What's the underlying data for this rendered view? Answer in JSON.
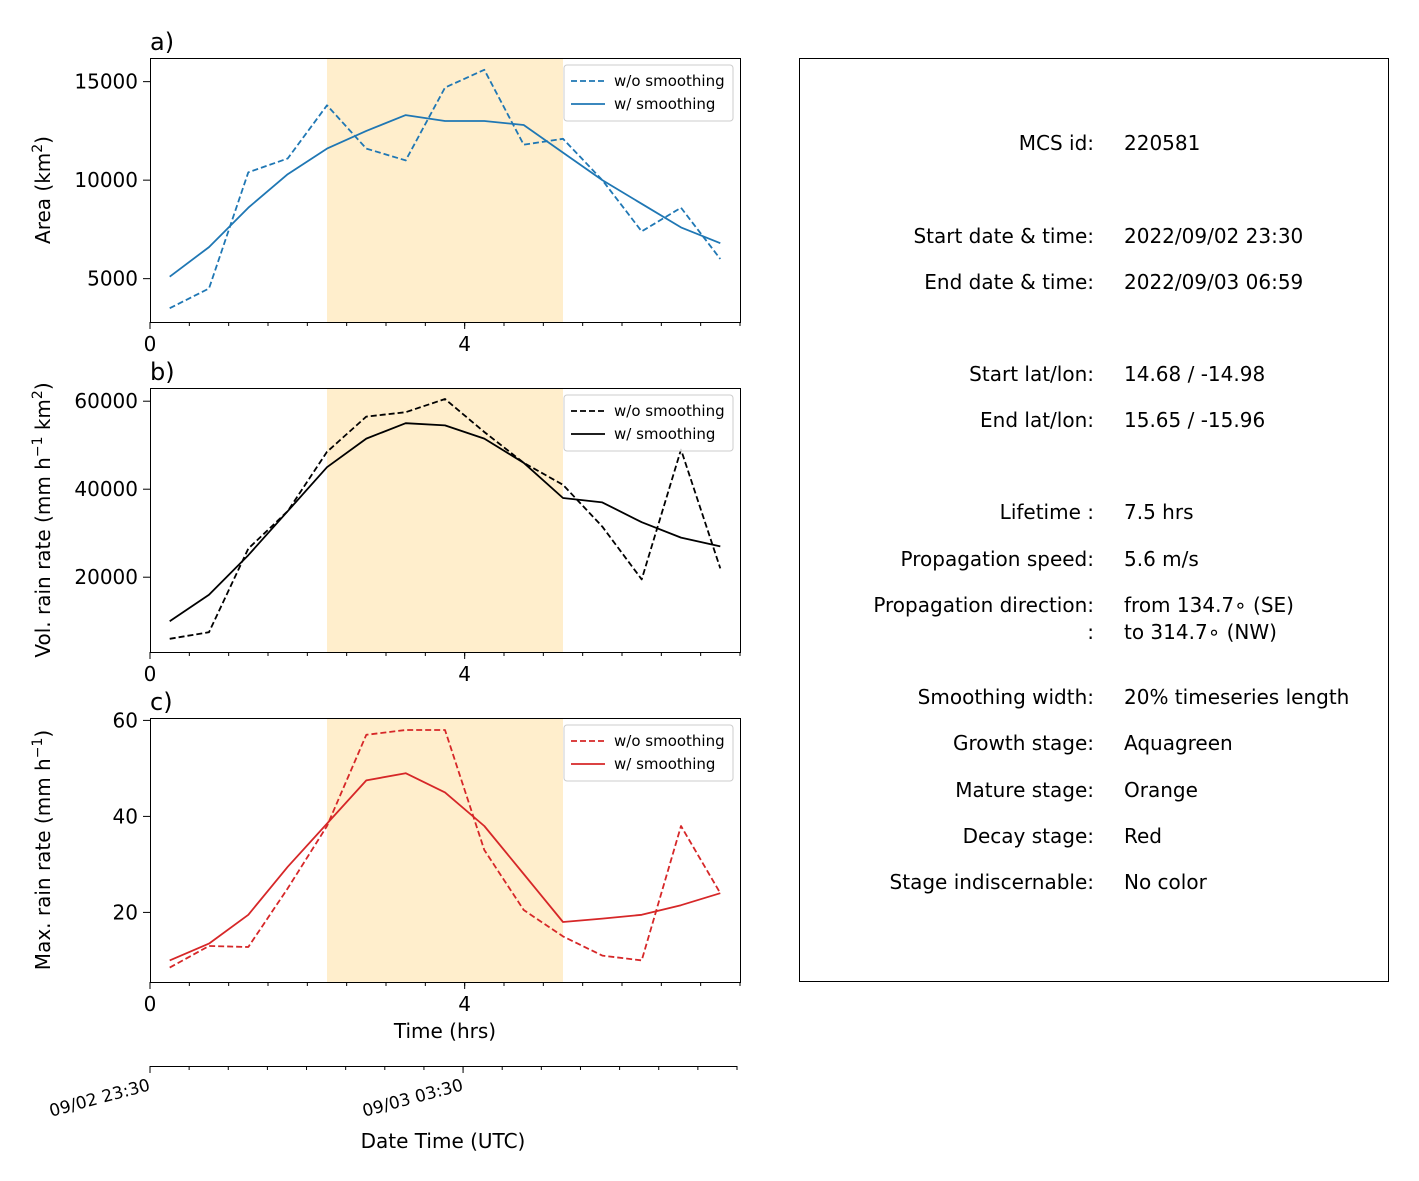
{
  "chart_data": [
    {
      "panel_label": "a)",
      "type": "line",
      "ylabel": "Area  (km",
      "ylabel_sup": "2",
      "ylabel_tail": ")",
      "xlim": [
        0,
        7.5
      ],
      "ylim": [
        2800,
        16200
      ],
      "yticks": [
        5000,
        10000,
        15000
      ],
      "xticks": [
        0,
        4
      ],
      "xticks_minor": [
        0,
        0.5,
        1,
        1.5,
        2,
        2.5,
        3,
        3.5,
        4,
        4.5,
        5,
        5.5,
        6,
        6.5,
        7,
        7.5
      ],
      "shade": {
        "from": 2.25,
        "to": 5.25,
        "color": "#ffeecc"
      },
      "color": "#1f77b4",
      "legend_position": "top-right",
      "series": [
        {
          "name": "w/o smoothing",
          "style": "dashed",
          "x": [
            0.25,
            0.75,
            1.25,
            1.75,
            2.25,
            2.75,
            3.25,
            3.75,
            4.25,
            4.75,
            5.25,
            5.75,
            6.25,
            6.75,
            7.25
          ],
          "y": [
            3500,
            4500,
            10400,
            11100,
            13800,
            11600,
            11000,
            14700,
            15600,
            11800,
            12100,
            10000,
            7400,
            8600,
            6000
          ]
        },
        {
          "name": "w/ smoothing",
          "style": "solid",
          "x": [
            0.25,
            0.75,
            1.25,
            1.75,
            2.25,
            2.75,
            3.25,
            3.75,
            4.25,
            4.75,
            5.25,
            5.75,
            6.25,
            6.75,
            7.25
          ],
          "y": [
            5100,
            6600,
            8600,
            10300,
            11600,
            12500,
            13300,
            13000,
            13000,
            12800,
            11400,
            10000,
            8800,
            7600,
            6800
          ]
        }
      ]
    },
    {
      "panel_label": "b)",
      "type": "line",
      "ylabel": "Vol. rain rate (mm h",
      "ylabel_sup": "−1",
      "ylabel_mid": " km",
      "ylabel_sup2": "2",
      "ylabel_tail": ")",
      "xlim": [
        0,
        7.5
      ],
      "ylim": [
        3000,
        63000
      ],
      "yticks": [
        20000,
        40000,
        60000
      ],
      "xticks": [
        0,
        4
      ],
      "xticks_minor": [
        0,
        0.5,
        1,
        1.5,
        2,
        2.5,
        3,
        3.5,
        4,
        4.5,
        5,
        5.5,
        6,
        6.5,
        7,
        7.5
      ],
      "shade": {
        "from": 2.25,
        "to": 5.25,
        "color": "#ffeecc"
      },
      "color": "#000000",
      "legend_position": "top-right",
      "series": [
        {
          "name": "w/o smoothing",
          "style": "dashed",
          "x": [
            0.25,
            0.75,
            1.25,
            1.75,
            2.25,
            2.75,
            3.25,
            3.75,
            4.25,
            4.75,
            5.25,
            5.75,
            6.25,
            6.75,
            7.25
          ],
          "y": [
            6000,
            7500,
            26500,
            35000,
            48500,
            56500,
            57500,
            60500,
            53000,
            46000,
            41000,
            31500,
            19500,
            49000,
            22000
          ]
        },
        {
          "name": "w/ smoothing",
          "style": "solid",
          "x": [
            0.25,
            0.75,
            1.25,
            1.75,
            2.25,
            2.75,
            3.25,
            3.75,
            4.25,
            4.75,
            5.25,
            5.75,
            6.25,
            6.75,
            7.25
          ],
          "y": [
            10000,
            16000,
            25000,
            35000,
            45000,
            51500,
            55000,
            54500,
            51500,
            46000,
            38000,
            37000,
            32500,
            29000,
            27000
          ]
        }
      ]
    },
    {
      "panel_label": "c)",
      "type": "line",
      "ylabel": "Max. rain rate  (mm h",
      "ylabel_sup": "−1",
      "ylabel_tail": ")",
      "xlabel": "Time (hrs)",
      "xlim": [
        0,
        7.5
      ],
      "ylim": [
        5.5,
        60.5
      ],
      "yticks": [
        20,
        40,
        60
      ],
      "xticks": [
        0,
        4
      ],
      "xticks_minor": [
        0,
        0.5,
        1,
        1.5,
        2,
        2.5,
        3,
        3.5,
        4,
        4.5,
        5,
        5.5,
        6,
        6.5,
        7,
        7.5
      ],
      "shade": {
        "from": 2.25,
        "to": 5.25,
        "color": "#ffeecc"
      },
      "color": "#d62728",
      "legend_position": "top-right",
      "series": [
        {
          "name": "w/o smoothing",
          "style": "dashed",
          "x": [
            0.25,
            0.75,
            1.25,
            1.75,
            2.25,
            2.75,
            3.25,
            3.75,
            4.25,
            4.75,
            5.25,
            5.75,
            6.25,
            6.75,
            7.25
          ],
          "y": [
            8.5,
            13,
            12.8,
            25,
            38,
            57,
            58,
            58,
            33,
            20.5,
            15,
            11,
            10,
            38,
            24
          ]
        },
        {
          "name": "w/ smoothing",
          "style": "solid",
          "x": [
            0.25,
            0.75,
            1.25,
            1.75,
            2.25,
            2.75,
            3.25,
            3.75,
            4.25,
            4.75,
            5.25,
            5.75,
            6.25,
            6.75,
            7.25
          ],
          "y": [
            10,
            13.5,
            19.5,
            29.5,
            38.5,
            47.5,
            49,
            45,
            38,
            28,
            18,
            18.7,
            19.5,
            21.5,
            24
          ]
        }
      ]
    }
  ],
  "date_axis": {
    "xlabel": "Date Time (UTC)",
    "xlim": [
      0,
      7.5
    ],
    "ticks": [
      {
        "x": 0,
        "label": "09/02 23:30"
      },
      {
        "x": 4,
        "label": "09/03 03:30"
      }
    ],
    "minor_ticks": [
      0,
      0.5,
      1,
      1.5,
      2,
      2.5,
      3,
      3.5,
      4,
      4.5,
      5,
      5.5,
      6,
      6.5,
      7,
      7.5
    ]
  },
  "info_panel": {
    "rows": [
      {
        "label": "MCS id:",
        "value": "220581"
      },
      {
        "label": "Start date & time:",
        "value": "2022/09/02 23:30"
      },
      {
        "label": "End date & time:",
        "value": "2022/09/03 06:59"
      },
      {
        "label": "Start lat/lon:",
        "value": "14.68 / -14.98"
      },
      {
        "label": "End lat/lon:",
        "value": "15.65 / -15.96"
      },
      {
        "label": "Lifetime :",
        "value": "7.5 hrs"
      },
      {
        "label": "Propagation speed:",
        "value": "5.6 m/s"
      },
      {
        "label": "Propagation direction:",
        "value": "from 134.7∘ (SE)"
      },
      {
        "label": ":",
        "value": "to   314.7∘ (NW)"
      },
      {
        "label": "Smoothing width:",
        "value": "20% timeseries length"
      },
      {
        "label": "Growth stage:",
        "value": "Aquagreen"
      },
      {
        "label": "Mature stage:",
        "value": "Orange"
      },
      {
        "label": "Decay stage:",
        "value": "Red"
      },
      {
        "label": "Stage indiscernable:",
        "value": "No color"
      }
    ]
  }
}
